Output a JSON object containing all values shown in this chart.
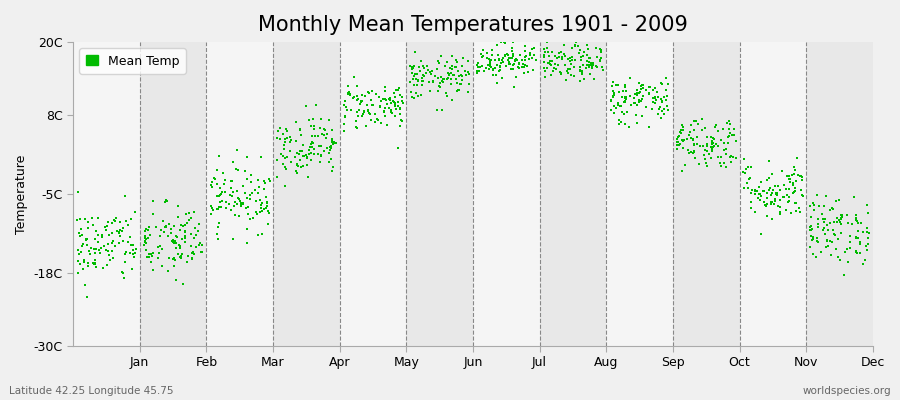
{
  "title": "Monthly Mean Temperatures 1901 - 2009",
  "ylabel": "Temperature",
  "xlabel": "",
  "ylim": [
    -30,
    20
  ],
  "yticks": [
    -30,
    -18,
    -5,
    8,
    20
  ],
  "ytick_labels": [
    "-30C",
    "-18C",
    "-5C",
    "8C",
    "20C"
  ],
  "months": [
    "Jan",
    "Feb",
    "Mar",
    "Apr",
    "May",
    "Jun",
    "Jul",
    "Aug",
    "Sep",
    "Oct",
    "Nov",
    "Dec"
  ],
  "month_means": [
    -13.5,
    -13.0,
    -5.5,
    3.0,
    9.5,
    14.0,
    17.0,
    16.5,
    10.5,
    3.5,
    -4.5,
    -11.0
  ],
  "month_stds": [
    3.2,
    3.2,
    2.8,
    2.5,
    2.0,
    1.8,
    1.5,
    1.5,
    2.0,
    2.2,
    2.5,
    2.8
  ],
  "n_years": 109,
  "dot_color": "#00bb00",
  "dot_size": 3,
  "bg_color_white": "#f5f5f5",
  "bg_color_gray": "#e8e8e8",
  "outer_bg": "#f0f0f0",
  "grid_color": "#888888",
  "title_fontsize": 15,
  "label_fontsize": 9,
  "tick_fontsize": 9,
  "legend_label": "Mean Temp",
  "bottom_left": "Latitude 42.25 Longitude 45.75",
  "bottom_right": "worldspecies.org",
  "seed": 42
}
